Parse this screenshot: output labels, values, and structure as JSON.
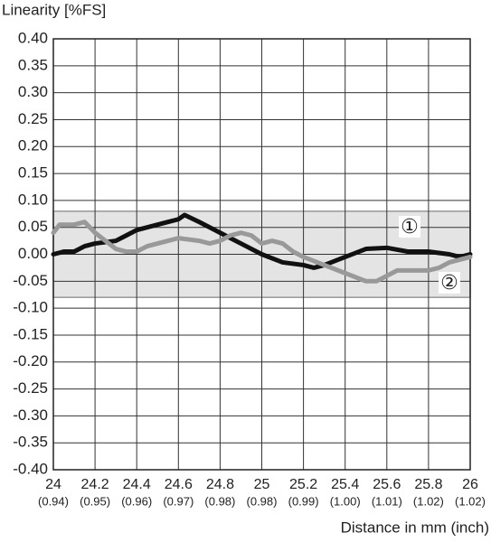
{
  "chart_data": {
    "type": "line",
    "y_label": "Linearity [%FS]",
    "x_label": "Distance in mm (inch)",
    "xlim": [
      24,
      26
    ],
    "ylim": [
      -0.4,
      0.4
    ],
    "xticks": [
      24,
      24.2,
      24.4,
      24.6,
      24.8,
      25,
      25.2,
      25.4,
      25.6,
      25.8,
      26
    ],
    "x2ticks": [
      {
        "value": 24,
        "label": "(0.94)"
      },
      {
        "value": 24.2,
        "label": "(0.95)"
      },
      {
        "value": 24.4,
        "label": "(0.96)"
      },
      {
        "value": 24.6,
        "label": "(0.97)"
      },
      {
        "value": 24.8,
        "label": "(0.98)"
      },
      {
        "value": 25,
        "label": "(0.98)"
      },
      {
        "value": 25.2,
        "label": "(0.99)"
      },
      {
        "value": 25.4,
        "label": "(1.00)"
      },
      {
        "value": 25.6,
        "label": "(1.01)"
      },
      {
        "value": 25.8,
        "label": "(1.02)"
      },
      {
        "value": 26,
        "label": "(1.02)"
      }
    ],
    "yticks": [
      {
        "value": 0.4,
        "label": "0.40"
      },
      {
        "value": 0.35,
        "label": "0.35"
      },
      {
        "value": 0.3,
        "label": "0.30"
      },
      {
        "value": 0.25,
        "label": "0.25"
      },
      {
        "value": 0.2,
        "label": "0.20"
      },
      {
        "value": 0.15,
        "label": "0.15"
      },
      {
        "value": 0.1,
        "label": "0.10"
      },
      {
        "value": 0.05,
        "label": "0.05"
      },
      {
        "value": 0,
        "label": "0.00"
      },
      {
        "value": -0.05,
        "label": "-0.05"
      },
      {
        "value": -0.1,
        "label": "-0.10"
      },
      {
        "value": -0.15,
        "label": "-0.15"
      },
      {
        "value": -0.2,
        "label": "-0.20"
      },
      {
        "value": -0.25,
        "label": "-0.25"
      },
      {
        "value": -0.3,
        "label": "-0.30"
      },
      {
        "value": -0.35,
        "label": "-0.35"
      },
      {
        "value": -0.4,
        "label": "-0.40"
      }
    ],
    "grid": true,
    "band": {
      "values": [
        -0.08,
        0.08
      ],
      "color": "#e4e4e4"
    },
    "series": [
      {
        "name": "①",
        "color": "#111111",
        "x": [
          24,
          24.05,
          24.1,
          24.15,
          24.2,
          24.3,
          24.35,
          24.4,
          24.45,
          24.5,
          24.55,
          24.6,
          24.63,
          24.7,
          24.8,
          24.9,
          25,
          25.1,
          25.2,
          25.25,
          25.3,
          25.4,
          25.5,
          25.6,
          25.7,
          25.8,
          25.9,
          25.95,
          26
        ],
        "values": [
          0,
          0.005,
          0.005,
          0.015,
          0.02,
          0.025,
          0.035,
          0.045,
          0.05,
          0.055,
          0.06,
          0.065,
          0.073,
          0.06,
          0.04,
          0.02,
          0,
          -0.015,
          -0.02,
          -0.025,
          -0.02,
          -0.005,
          0.01,
          0.012,
          0.005,
          0.005,
          0,
          -0.005,
          0
        ]
      },
      {
        "name": "②",
        "color": "#999999",
        "x": [
          24,
          24.03,
          24.1,
          24.15,
          24.2,
          24.25,
          24.3,
          24.35,
          24.4,
          24.45,
          24.5,
          24.55,
          24.6,
          24.7,
          24.75,
          24.8,
          24.85,
          24.9,
          24.95,
          25,
          25.05,
          25.1,
          25.15,
          25.2,
          25.3,
          25.4,
          25.5,
          25.55,
          25.6,
          25.65,
          25.7,
          25.8,
          25.85,
          25.9,
          25.95,
          26
        ],
        "values": [
          0.04,
          0.055,
          0.055,
          0.06,
          0.04,
          0.025,
          0.01,
          0.005,
          0.005,
          0.015,
          0.02,
          0.025,
          0.03,
          0.025,
          0.02,
          0.025,
          0.035,
          0.04,
          0.035,
          0.02,
          0.025,
          0.02,
          0.005,
          -0.005,
          -0.02,
          -0.035,
          -0.05,
          -0.05,
          -0.04,
          -0.03,
          -0.03,
          -0.03,
          -0.025,
          -0.015,
          -0.01,
          -0.005
        ]
      }
    ]
  }
}
